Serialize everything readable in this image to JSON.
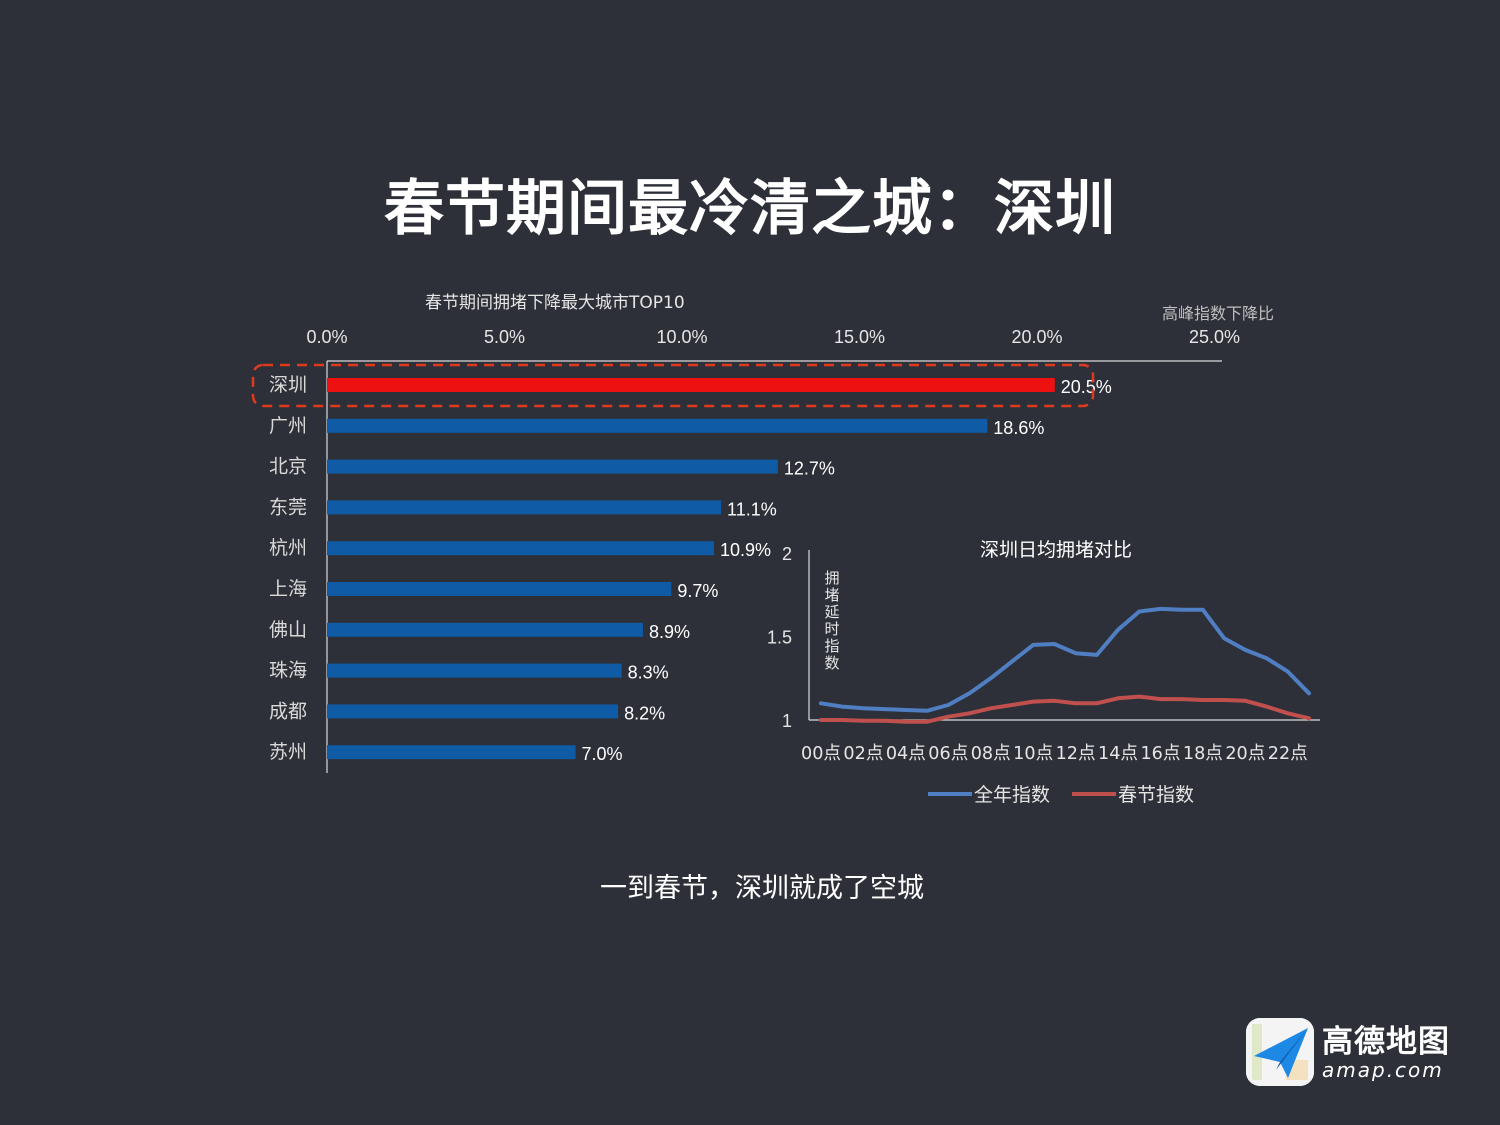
{
  "page": {
    "title": "春节期间最冷清之城：深圳",
    "caption": "一到春节，深圳就成了空城"
  },
  "logo": {
    "name_cn": "高德地图",
    "name_en": "amap.com",
    "icon": "paper-plane-icon"
  },
  "colors": {
    "background": "#2d3038",
    "bar_default": "#0f5ba5",
    "bar_highlight": "#ee1111",
    "highlight_box": "#e03a1e",
    "line_all_year": "#4f7fc2",
    "line_spring": "#c0504d"
  },
  "chart_data": [
    {
      "type": "bar",
      "orientation": "horizontal",
      "title": "春节期间拥堵下降最大城市TOP10",
      "axis_unit_label": "高峰指数下降比",
      "categories": [
        "深圳",
        "广州",
        "北京",
        "东莞",
        "杭州",
        "上海",
        "佛山",
        "珠海",
        "成都",
        "苏州"
      ],
      "values": [
        20.5,
        18.6,
        12.7,
        11.1,
        10.9,
        9.7,
        8.9,
        8.3,
        8.2,
        7.0
      ],
      "value_labels": [
        "20.5%",
        "18.6%",
        "12.7%",
        "11.1%",
        "10.9%",
        "9.7%",
        "8.9%",
        "8.3%",
        "8.2%",
        "7.0%"
      ],
      "x_ticks": [
        0,
        5,
        10,
        15,
        20,
        25
      ],
      "x_tick_labels": [
        "0.0%",
        "5.0%",
        "10.0%",
        "15.0%",
        "20.0%",
        "25.0%"
      ],
      "xlim": [
        0,
        25
      ],
      "axis_position": "top",
      "highlight": "深圳"
    },
    {
      "type": "line",
      "title": "深圳日均拥堵对比",
      "ylabel": "拥堵延时指数",
      "ylim": [
        1,
        2
      ],
      "y_ticks": [
        1,
        1.5,
        2
      ],
      "y_tick_labels": [
        "1",
        "1.5",
        "2"
      ],
      "x": [
        "00点",
        "01点",
        "02点",
        "03点",
        "04点",
        "05点",
        "06点",
        "07点",
        "08点",
        "09点",
        "10点",
        "11点",
        "12点",
        "13点",
        "14点",
        "15点",
        "16点",
        "17点",
        "18点",
        "19点",
        "20点",
        "21点",
        "22点",
        "23点"
      ],
      "x_tick_labels": [
        "00点",
        "02点",
        "04点",
        "06点",
        "08点",
        "10点",
        "12点",
        "14点",
        "16点",
        "18点",
        "20点",
        "22点"
      ],
      "series": [
        {
          "name": "全年指数",
          "color": "#4f7fc2",
          "values": [
            1.1,
            1.08,
            1.07,
            1.065,
            1.06,
            1.055,
            1.09,
            1.16,
            1.25,
            1.35,
            1.45,
            1.455,
            1.4,
            1.39,
            1.54,
            1.65,
            1.665,
            1.66,
            1.66,
            1.49,
            1.42,
            1.37,
            1.29,
            1.16
          ]
        },
        {
          "name": "春节指数",
          "color": "#c0504d",
          "values": [
            1.0,
            1.0,
            0.995,
            0.995,
            0.99,
            0.99,
            1.02,
            1.04,
            1.07,
            1.09,
            1.11,
            1.115,
            1.1,
            1.1,
            1.13,
            1.14,
            1.125,
            1.125,
            1.12,
            1.12,
            1.115,
            1.08,
            1.04,
            1.01
          ]
        }
      ],
      "legend_position": "bottom"
    }
  ]
}
